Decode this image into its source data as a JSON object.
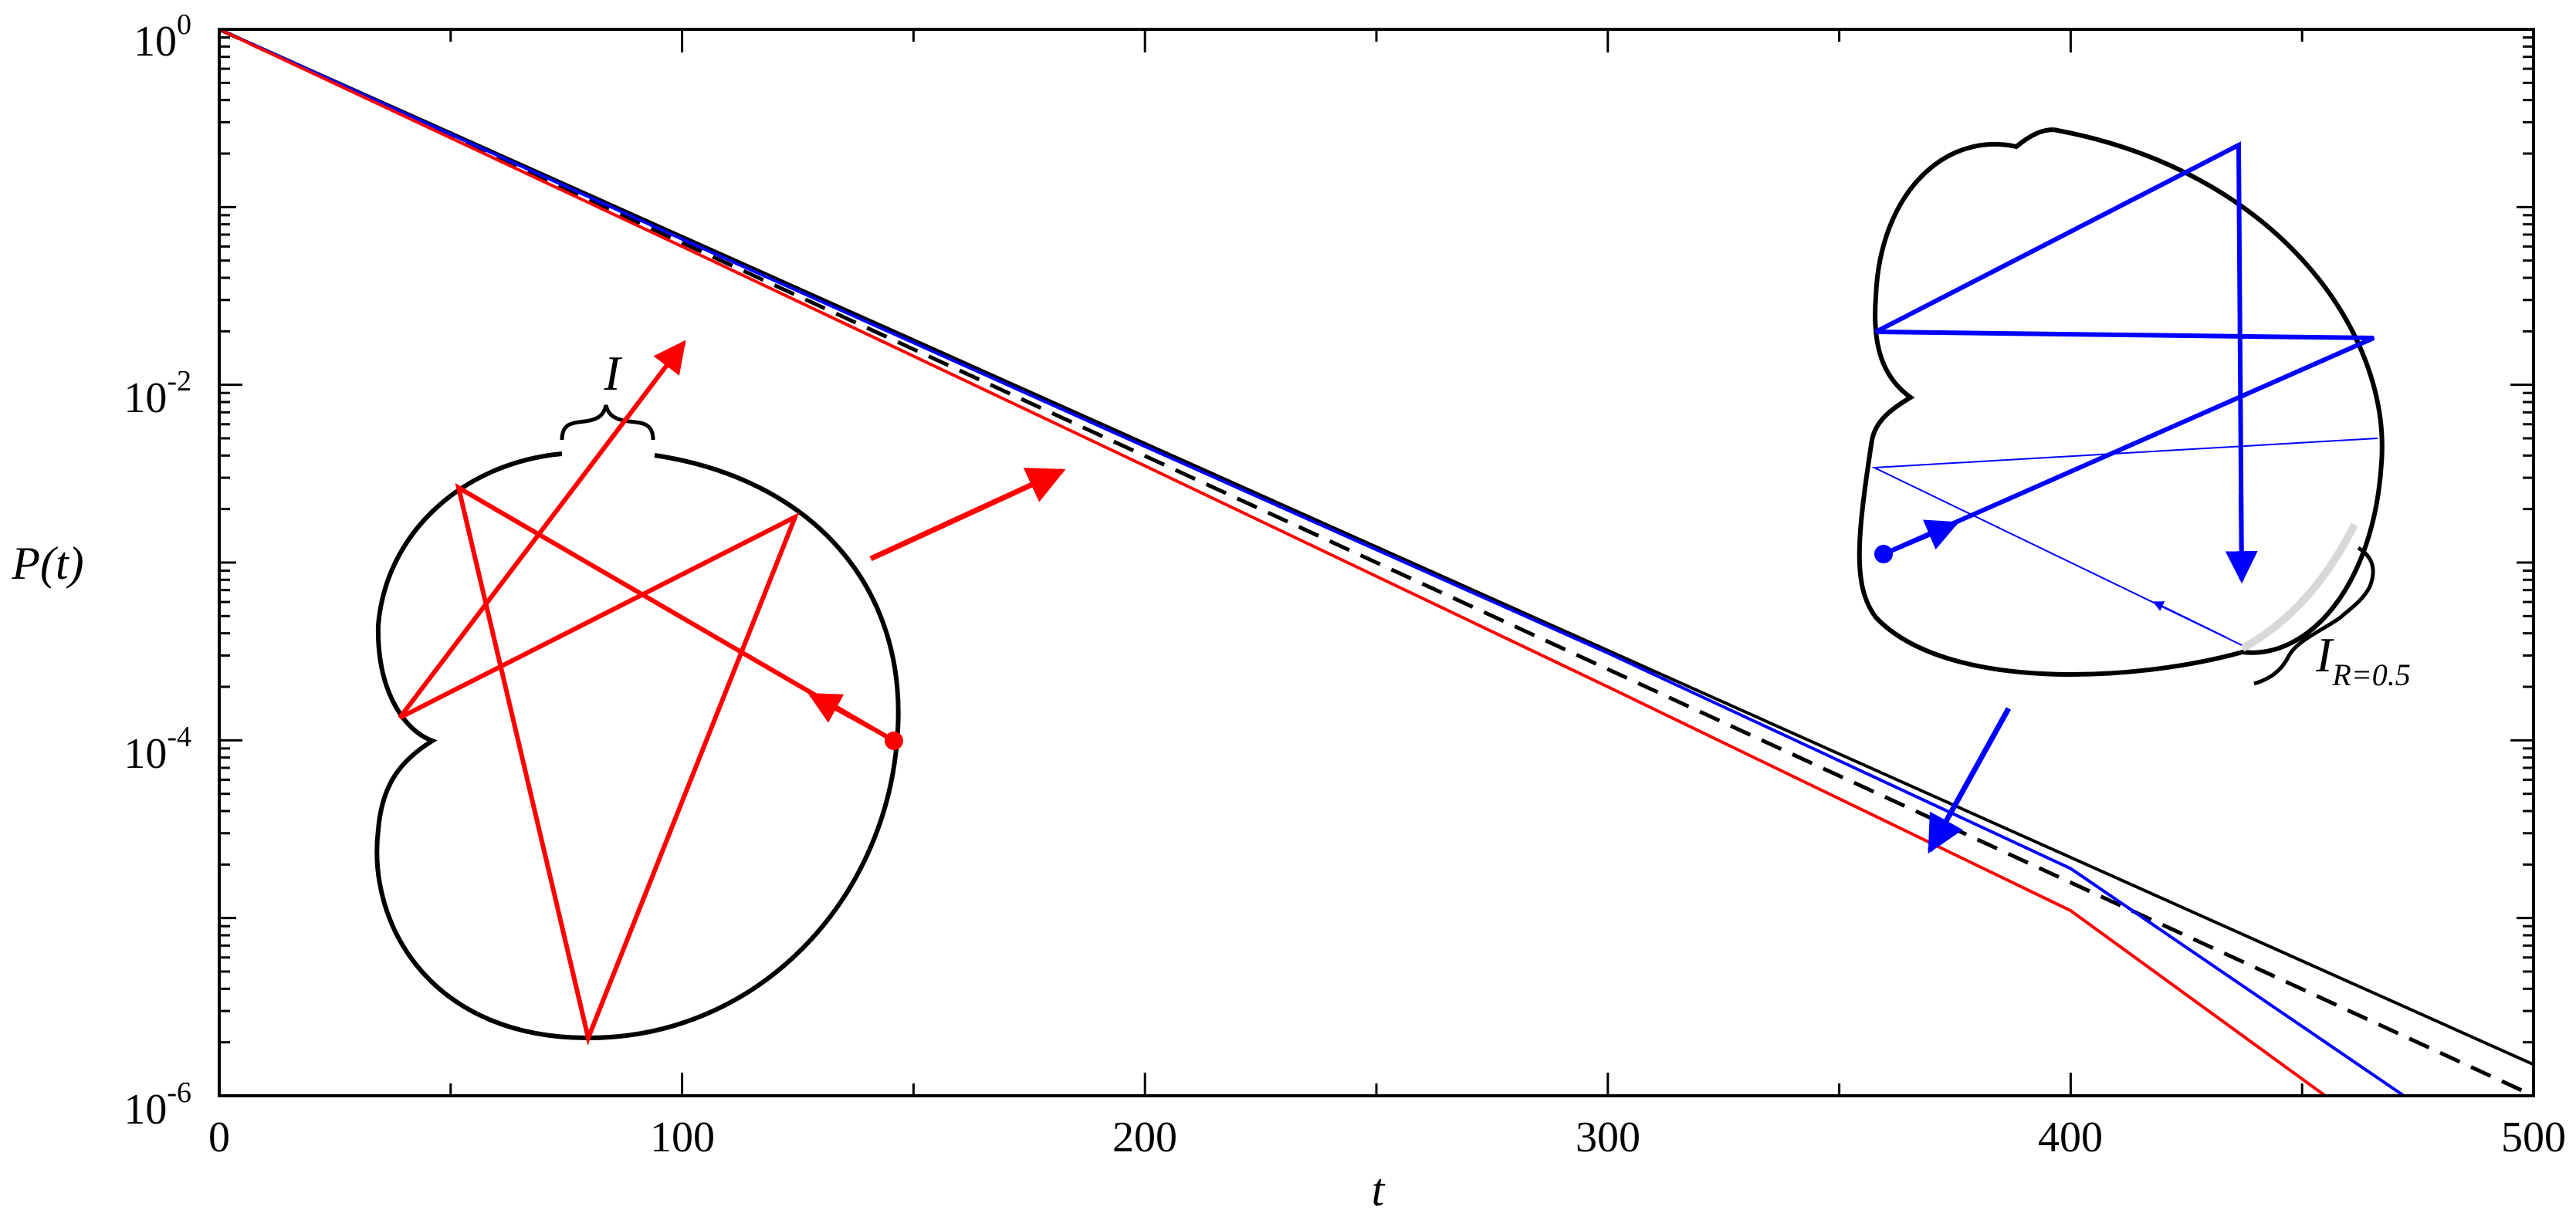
{
  "chart_data": {
    "type": "line",
    "xlabel": "t",
    "ylabel": "P(t)",
    "xlim": [
      0,
      500
    ],
    "ylim": [
      1e-06,
      1
    ],
    "yscale": "log",
    "grid": false,
    "x_ticks": [
      "0",
      "100",
      "200",
      "300",
      "400",
      "500"
    ],
    "y_ticks": [
      {
        "base": "10",
        "exp": "0"
      },
      {
        "base": "10",
        "exp": "-2"
      },
      {
        "base": "10",
        "exp": "-4"
      },
      {
        "base": "10",
        "exp": "-6"
      }
    ],
    "series": [
      {
        "color": "#000000",
        "style": "solid",
        "x": [
          0,
          500
        ],
        "y": [
          1,
          1.5e-06
        ]
      },
      {
        "color": "#000000",
        "style": "dashed",
        "x": [
          0,
          500
        ],
        "y": [
          1,
          1e-06
        ]
      },
      {
        "color": "#0000ff",
        "style": "solid",
        "x": [
          0,
          100,
          200,
          300,
          400,
          472
        ],
        "y": [
          1,
          0.066,
          0.0045,
          0.00031,
          1.9e-05,
          1e-06
        ]
      },
      {
        "color": "#ff0000",
        "style": "solid",
        "x": [
          0,
          100,
          200,
          300,
          400,
          455
        ],
        "y": [
          1,
          0.06,
          0.0035,
          0.0002,
          1.1e-05,
          1e-06
        ]
      }
    ],
    "annotations": {
      "left_inset_label": "I",
      "right_inset_label_main": "I",
      "right_inset_label_sub": "R=0.5"
    }
  },
  "colors": {
    "red": "#ff0000",
    "blue": "#0000ff",
    "black": "#000000",
    "gray": "#d8d8d8"
  }
}
